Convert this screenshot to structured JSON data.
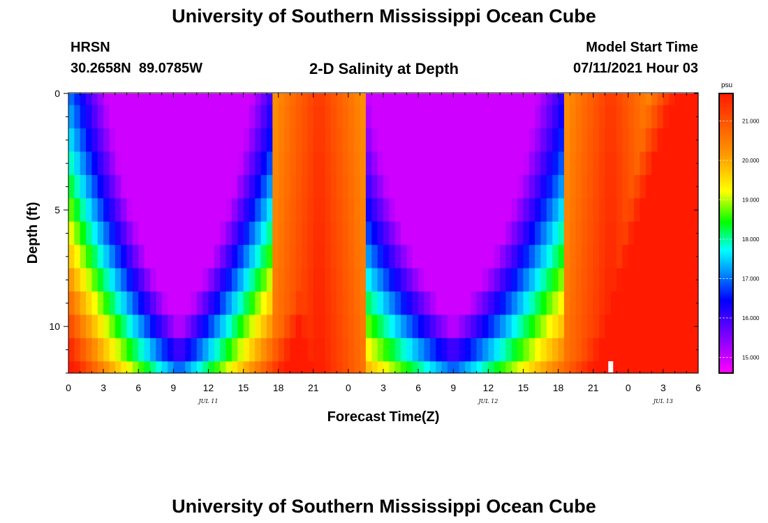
{
  "page": {
    "title_top": "University of Southern Mississippi Ocean Cube",
    "title_bottom": "University of Southern Mississippi Ocean Cube",
    "station": "HRSN",
    "coords": "30.2658N  89.0785W",
    "plot_title": "2-D Salinity at Depth",
    "model_start_label": "Model Start Time",
    "model_start_value": "07/11/2021 Hour 03"
  },
  "chart_data": {
    "type": "heatmap",
    "title": "2-D Salinity at Depth",
    "xlabel": "Forecast Time(Z)",
    "ylabel": "Depth (ft)",
    "x_hours": [
      0,
      54
    ],
    "xticks": [
      {
        "h": 0,
        "label": "0"
      },
      {
        "h": 3,
        "label": "3"
      },
      {
        "h": 6,
        "label": "6"
      },
      {
        "h": 9,
        "label": "9"
      },
      {
        "h": 12,
        "label": "12"
      },
      {
        "h": 15,
        "label": "15"
      },
      {
        "h": 18,
        "label": "18"
      },
      {
        "h": 21,
        "label": "21"
      },
      {
        "h": 24,
        "label": "0"
      },
      {
        "h": 27,
        "label": "3"
      },
      {
        "h": 30,
        "label": "6"
      },
      {
        "h": 33,
        "label": "9"
      },
      {
        "h": 36,
        "label": "12"
      },
      {
        "h": 39,
        "label": "15"
      },
      {
        "h": 42,
        "label": "18"
      },
      {
        "h": 45,
        "label": "21"
      },
      {
        "h": 48,
        "label": "0"
      },
      {
        "h": 51,
        "label": "3"
      },
      {
        "h": 54,
        "label": "6"
      }
    ],
    "date_labels": [
      {
        "h": 12,
        "label": "JUL 11"
      },
      {
        "h": 36,
        "label": "JUL 12"
      },
      {
        "h": 51,
        "label": "JUL 13"
      }
    ],
    "y_depth_ft": [
      0,
      12
    ],
    "yticks": [
      {
        "d": 0,
        "label": "0"
      },
      {
        "d": 5,
        "label": "5"
      },
      {
        "d": 10,
        "label": "10"
      }
    ],
    "depth_levels_ft": [
      0,
      1,
      2,
      3,
      4,
      5,
      6,
      7,
      8,
      9,
      10,
      11,
      12
    ],
    "salinity_model": {
      "low_troughs": [
        {
          "center_hour": 9.5,
          "width_surface_h": 16.5,
          "width_bottom_h": 9.0
        },
        {
          "center_hour": 33.0,
          "width_surface_h": 19.0,
          "width_bottom_h": 12.0
        }
      ],
      "high_peaks_hour": [
        21.5,
        46.5
      ],
      "range_psu": [
        14.6,
        21.7
      ]
    },
    "colorbar": {
      "unit": "psu",
      "min": 14.6,
      "max": 21.7,
      "ticks": [
        "15.000",
        "16.000",
        "17.000",
        "18.000",
        "19.000",
        "20.000",
        "21.000"
      ]
    },
    "marker": {
      "hour": 46.5,
      "note": "white bar at bottom"
    }
  }
}
